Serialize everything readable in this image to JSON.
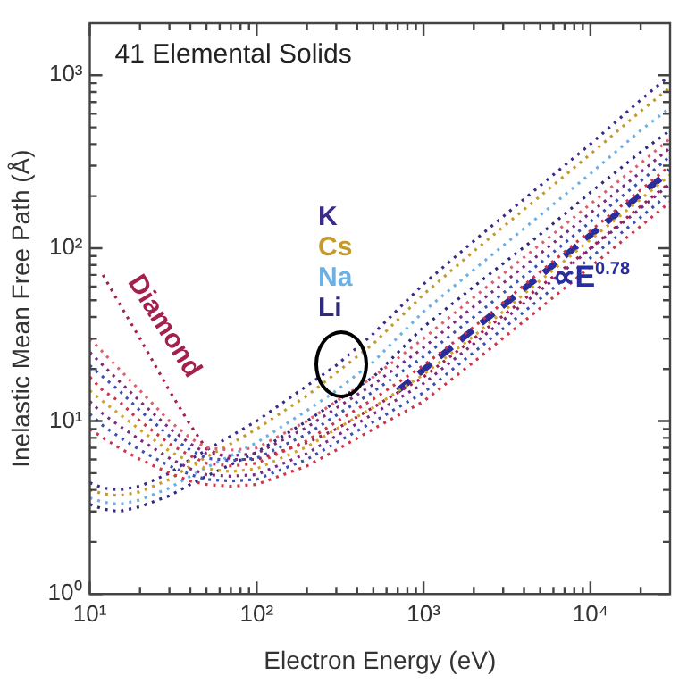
{
  "chart_data": {
    "type": "line",
    "title": "41 Elemental Solids",
    "xlabel": "Electron Energy (eV)",
    "ylabel": "Inelastic Mean Free Path (Å)",
    "log": "xy",
    "line_style": "dotted",
    "xlim": [
      10,
      30000
    ],
    "ylim": [
      1,
      2000
    ],
    "xticks": [
      {
        "value": 10,
        "label": "10¹"
      },
      {
        "value": 20,
        "label": null
      },
      {
        "value": 30,
        "label": null
      },
      {
        "value": 40,
        "label": null
      },
      {
        "value": 50,
        "label": null
      },
      {
        "value": 60,
        "label": null
      },
      {
        "value": 70,
        "label": null
      },
      {
        "value": 80,
        "label": null
      },
      {
        "value": 90,
        "label": null
      },
      {
        "value": 100,
        "label": "10²"
      },
      {
        "value": 200,
        "label": null
      },
      {
        "value": 300,
        "label": null
      },
      {
        "value": 400,
        "label": null
      },
      {
        "value": 500,
        "label": null
      },
      {
        "value": 600,
        "label": null
      },
      {
        "value": 700,
        "label": null
      },
      {
        "value": 800,
        "label": null
      },
      {
        "value": 900,
        "label": null
      },
      {
        "value": 1000,
        "label": "10³"
      },
      {
        "value": 2000,
        "label": null
      },
      {
        "value": 3000,
        "label": null
      },
      {
        "value": 4000,
        "label": null
      },
      {
        "value": 5000,
        "label": null
      },
      {
        "value": 6000,
        "label": null
      },
      {
        "value": 7000,
        "label": null
      },
      {
        "value": 8000,
        "label": null
      },
      {
        "value": 9000,
        "label": null
      },
      {
        "value": 10000,
        "label": "10⁴"
      },
      {
        "value": 20000,
        "label": null
      }
    ],
    "yticks": [
      {
        "value": 1,
        "label": "10⁰"
      },
      {
        "value": 2,
        "label": null
      },
      {
        "value": 3,
        "label": null
      },
      {
        "value": 4,
        "label": null
      },
      {
        "value": 5,
        "label": null
      },
      {
        "value": 6,
        "label": null
      },
      {
        "value": 7,
        "label": null
      },
      {
        "value": 8,
        "label": null
      },
      {
        "value": 9,
        "label": null
      },
      {
        "value": 10,
        "label": "10¹"
      },
      {
        "value": 20,
        "label": null
      },
      {
        "value": 30,
        "label": null
      },
      {
        "value": 40,
        "label": null
      },
      {
        "value": 50,
        "label": null
      },
      {
        "value": 60,
        "label": null
      },
      {
        "value": 70,
        "label": null
      },
      {
        "value": 80,
        "label": null
      },
      {
        "value": 90,
        "label": null
      },
      {
        "value": 100,
        "label": "10²"
      },
      {
        "value": 200,
        "label": null
      },
      {
        "value": 300,
        "label": null
      },
      {
        "value": 400,
        "label": null
      },
      {
        "value": 500,
        "label": null
      },
      {
        "value": 600,
        "label": null
      },
      {
        "value": 700,
        "label": null
      },
      {
        "value": 800,
        "label": null
      },
      {
        "value": 900,
        "label": null
      },
      {
        "value": 1000,
        "label": "10³"
      }
    ],
    "annotations": [
      {
        "text": "∝E$^{0.78}$",
        "x": 6000,
        "y": 60
      }
    ],
    "x": [
      10,
      12,
      15,
      20,
      30,
      40,
      50,
      70,
      100,
      200,
      300,
      500,
      1000,
      2000,
      5000,
      10000,
      20000,
      30000
    ],
    "series": [
      {
        "color": "#d0344c",
        "values": [
          9,
          8,
          7,
          6,
          5,
          4.5,
          4.3,
          4.2,
          4.3,
          5.5,
          6.8,
          9,
          13,
          22,
          45,
          78,
          134,
          185
        ]
      },
      {
        "color": "#3a50b4",
        "values": [
          11,
          9.4,
          8.1,
          6.8,
          5.5,
          4.9,
          4.6,
          4.5,
          4.6,
          6,
          7.5,
          9.9,
          14.6,
          25,
          51,
          88,
          151,
          209
        ]
      },
      {
        "color": "#7a2a82",
        "values": [
          13,
          11,
          9.4,
          7.8,
          6.1,
          5.3,
          4.9,
          4.8,
          4.9,
          6.5,
          8.2,
          11,
          16.5,
          28,
          57,
          99,
          170,
          235
        ]
      },
      {
        "color": "#d0a428",
        "values": [
          15,
          13,
          11,
          8.9,
          6.7,
          5.8,
          5.3,
          5.1,
          5.3,
          7.1,
          9,
          12,
          18.6,
          31,
          65,
          112,
          192,
          265
        ]
      },
      {
        "color": "#d0344c",
        "values": [
          18,
          15,
          13,
          10,
          7.4,
          6.3,
          5.7,
          5.5,
          5.7,
          7.7,
          9.9,
          13.4,
          21,
          35,
          73,
          126,
          217,
          300
        ]
      },
      {
        "color": "#3a50b4",
        "values": [
          21,
          18,
          15,
          11.5,
          8.2,
          6.8,
          6.1,
          5.9,
          6.1,
          8.4,
          10.8,
          14.8,
          23.6,
          40,
          82,
          142,
          244,
          340
        ]
      },
      {
        "color": "#7a2a82",
        "values": [
          25,
          21,
          17,
          13,
          9.1,
          7.4,
          6.5,
          6.3,
          6.5,
          9.2,
          11.9,
          16.3,
          26.6,
          46,
          93,
          160,
          275,
          380
        ]
      },
      {
        "color": "#e06070",
        "values": [
          30,
          25,
          20,
          15,
          10,
          8,
          7,
          6.8,
          7,
          10,
          13,
          18,
          30,
          52,
          105,
          180,
          310,
          430
        ]
      },
      {
        "name": "Diamond",
        "color": "#a3204f",
        "values": [
          null,
          70,
          48,
          30,
          15,
          9.5,
          6.9,
          6,
          6,
          7.5,
          9,
          12,
          18,
          30,
          60,
          100,
          175,
          240
        ]
      },
      {
        "name": "K",
        "color": "#3d2b8c",
        "values": [
          4.4,
          4.1,
          4,
          4.2,
          5,
          6,
          6.8,
          8.2,
          10,
          16,
          21,
          32,
          62,
          110,
          230,
          400,
          720,
          1000
        ]
      },
      {
        "name": "Cs",
        "color": "#c49a2c",
        "values": [
          4,
          3.8,
          3.7,
          3.9,
          4.6,
          5.5,
          6.2,
          7.4,
          9,
          14,
          19,
          28,
          54,
          96,
          200,
          350,
          620,
          850
        ]
      },
      {
        "name": "Na",
        "color": "#6cb0e4",
        "values": [
          3.6,
          3.4,
          3.3,
          3.5,
          4.1,
          4.8,
          5.4,
          6.3,
          7.5,
          11.5,
          15,
          22,
          43,
          75,
          155,
          270,
          480,
          650
        ]
      },
      {
        "name": "Li",
        "color": "#2e2a7e",
        "values": [
          3.3,
          3.1,
          3,
          3.2,
          3.7,
          4.3,
          4.8,
          5.6,
          6.6,
          10,
          13,
          18,
          35,
          60,
          120,
          210,
          360,
          480
        ]
      },
      {
        "type": "line",
        "line_style": "dashed",
        "color": "#2b2d9b",
        "x": [
          700,
          30000
        ],
        "values": [
          15,
          280
        ]
      }
    ]
  }
}
